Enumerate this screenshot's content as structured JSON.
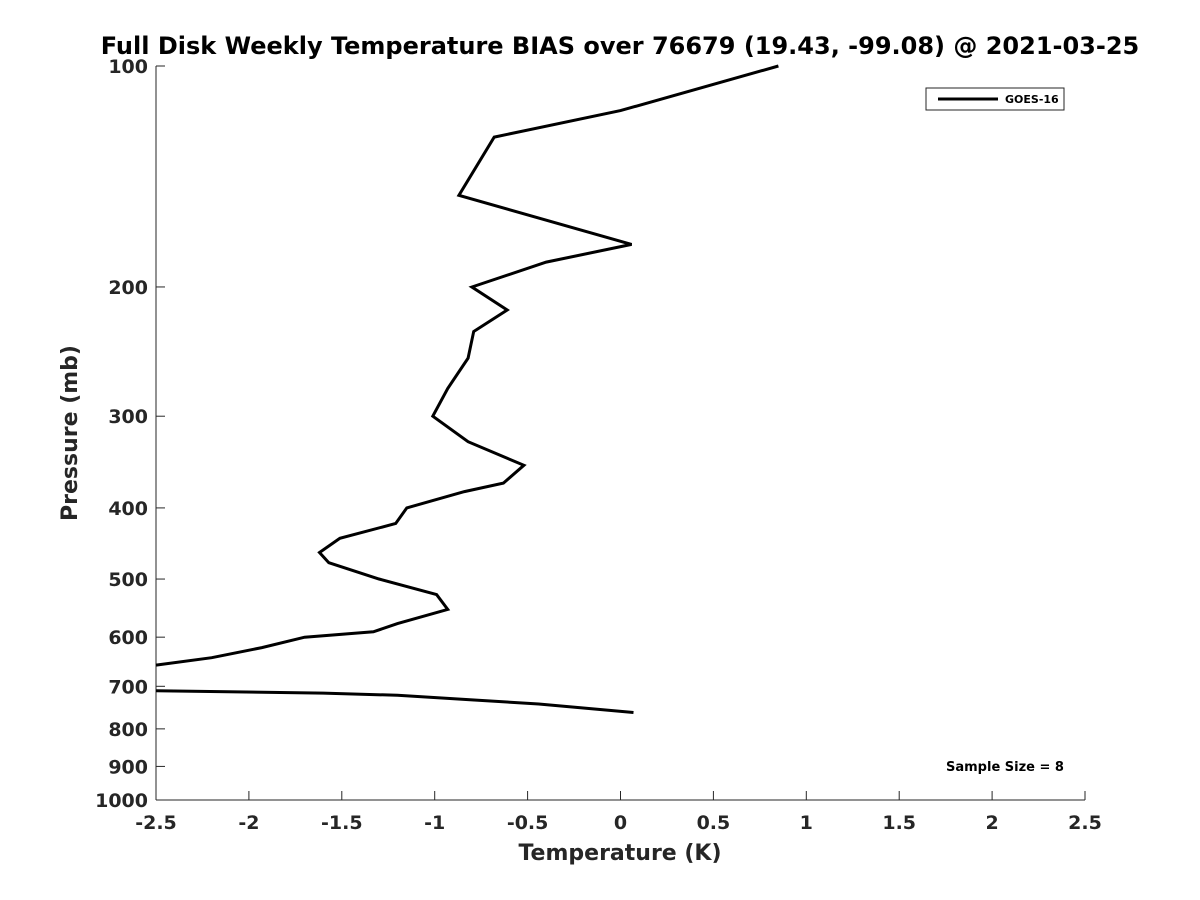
{
  "chart_data": {
    "type": "line",
    "title": "Full Disk Weekly Temperature BIAS over 76679 (19.43, -99.08) @ 2021-03-25",
    "xlabel": "Temperature (K)",
    "ylabel": "Pressure (mb)",
    "xlim": [
      -2.5,
      2.5
    ],
    "ylim": [
      100,
      1000
    ],
    "y_scale": "log",
    "y_reversed": true,
    "x_ticks": [
      "-2.5",
      "-2",
      "-1.5",
      "-1",
      "-0.5",
      "0",
      "0.5",
      "1",
      "1.5",
      "2",
      "2.5"
    ],
    "y_ticks": [
      "100",
      "200",
      "300",
      "400",
      "500",
      "600",
      "700",
      "800",
      "900",
      "1000"
    ],
    "grid": false,
    "legend_position": "top-right",
    "series": [
      {
        "name": "GOES-16",
        "color": "#000000",
        "points": [
          [
            0.85,
            100
          ],
          [
            0.0,
            115
          ],
          [
            -0.68,
            125
          ],
          [
            -0.87,
            150
          ],
          [
            0.06,
            175
          ],
          [
            -0.4,
            185
          ],
          [
            -0.8,
            200
          ],
          [
            -0.61,
            215
          ],
          [
            -0.79,
            230
          ],
          [
            -0.82,
            250
          ],
          [
            -0.93,
            275
          ],
          [
            -1.01,
            300
          ],
          [
            -0.82,
            325
          ],
          [
            -0.52,
            350
          ],
          [
            -0.63,
            370
          ],
          [
            -0.84,
            380
          ],
          [
            -1.15,
            400
          ],
          [
            -1.21,
            420
          ],
          [
            -1.51,
            440
          ],
          [
            -1.62,
            460
          ],
          [
            -1.57,
            475
          ],
          [
            -1.3,
            500
          ],
          [
            -0.99,
            525
          ],
          [
            -0.93,
            550
          ],
          [
            -1.2,
            575
          ],
          [
            -1.33,
            590
          ],
          [
            -1.7,
            600
          ],
          [
            -1.93,
            620
          ],
          [
            -2.2,
            640
          ],
          [
            -2.5,
            655
          ]
        ]
      },
      {
        "name": "",
        "color": "#000000",
        "points": [
          [
            -2.5,
            710
          ],
          [
            -1.6,
            715
          ],
          [
            -1.2,
            720
          ],
          [
            -0.81,
            730
          ],
          [
            -0.44,
            740
          ],
          [
            0.07,
            760
          ]
        ]
      }
    ],
    "annotations": [
      "Sample Size = 8"
    ]
  }
}
